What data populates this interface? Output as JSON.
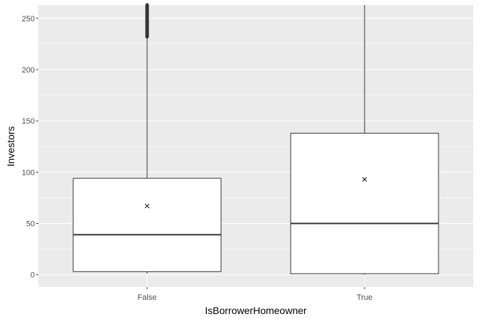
{
  "chart_data": {
    "type": "box",
    "xlabel": "IsBorrowerHomeowner",
    "ylabel": "Investors",
    "ylim": [
      -12,
      263
    ],
    "yticks": [
      0,
      50,
      100,
      150,
      200,
      250
    ],
    "grid": true,
    "categories": [
      "False",
      "True"
    ],
    "boxes": [
      {
        "category": "False",
        "lower_whisker": 1,
        "q1": 3,
        "median": 39,
        "q3": 94,
        "upper_whisker": 232,
        "mean": 67,
        "outliers_from": 232,
        "outliers_to": 263
      },
      {
        "category": "True",
        "lower_whisker": 0,
        "q1": 1,
        "median": 50,
        "q3": 138,
        "upper_whisker": 263,
        "mean": 93
      }
    ],
    "colors": {
      "panel": "#ebebeb",
      "grid_major": "#ffffff",
      "box_fill": "#ffffff",
      "line": "#333333",
      "mean_marker": "#000000"
    }
  }
}
